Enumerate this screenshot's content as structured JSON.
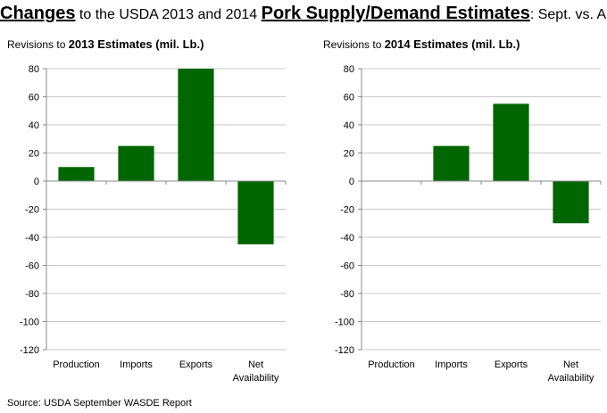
{
  "header": {
    "title_part1": "Changes",
    "title_part2": " to the USDA 2013 and 2014 ",
    "title_part3": "Pork Supply/Demand Estimates",
    "title_part4": ":  Sept. vs. Aug."
  },
  "footer": {
    "source": "Source:  USDA September WASDE Report"
  },
  "chart_data": [
    {
      "type": "bar",
      "title_prefix": "Revisions to ",
      "title_bold": "2013 Estimates (mil. Lb.)",
      "categories": [
        "Production",
        "Imports",
        "Exports",
        "Net Availability"
      ],
      "category_lines": [
        [
          "Production"
        ],
        [
          "Imports"
        ],
        [
          "Exports"
        ],
        [
          "Net",
          "Availability"
        ]
      ],
      "values": [
        10,
        25,
        80,
        -45
      ],
      "ylim": [
        -120,
        80
      ],
      "yticks": [
        80,
        60,
        40,
        20,
        0,
        -20,
        -40,
        -60,
        -80,
        -100,
        -120
      ],
      "bar_color": "#006600",
      "grid": true
    },
    {
      "type": "bar",
      "title_prefix": "Revisions to ",
      "title_bold": "2014 Estimates (mil. Lb.)",
      "categories": [
        "Production",
        "Imports",
        "Exports",
        "Net Availability"
      ],
      "category_lines": [
        [
          "Production"
        ],
        [
          "Imports"
        ],
        [
          "Exports"
        ],
        [
          "Net",
          "Availability"
        ]
      ],
      "values": [
        0,
        25,
        55,
        -30
      ],
      "ylim": [
        -120,
        80
      ],
      "yticks": [
        80,
        60,
        40,
        20,
        0,
        -20,
        -40,
        -60,
        -80,
        -100,
        -120
      ],
      "bar_color": "#006600",
      "grid": true
    }
  ]
}
